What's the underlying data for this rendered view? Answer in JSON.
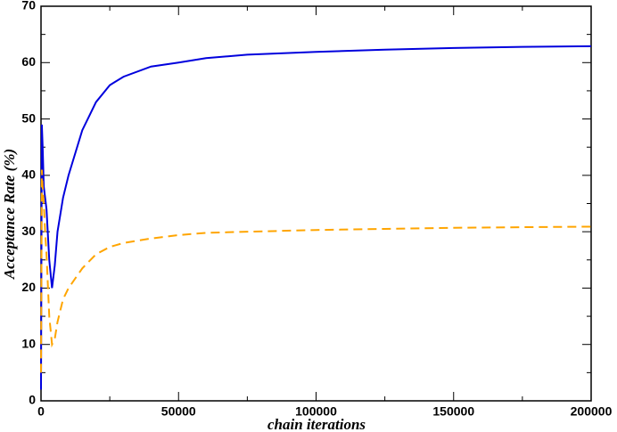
{
  "chart_data": {
    "type": "line",
    "x_label": "chain iterations",
    "y_label": "Acceptance Rate (%)",
    "x": [
      0,
      300,
      600,
      1000,
      1500,
      2000,
      3000,
      4000,
      5000,
      6000,
      8000,
      10000,
      15000,
      20000,
      25000,
      30000,
      40000,
      50000,
      60000,
      75000,
      100000,
      125000,
      150000,
      175000,
      200000
    ],
    "series": [
      {
        "color": "#0000dd",
        "dash": false,
        "values": [
          2,
          49,
          45,
          38,
          36,
          34,
          25,
          20,
          24,
          30,
          36,
          40,
          48,
          53,
          56,
          57.5,
          59.3,
          60,
          60.8,
          61.4,
          61.9,
          62.3,
          62.6,
          62.8,
          62.9
        ]
      },
      {
        "color": "#ffa500",
        "dash": true,
        "values": [
          5,
          41,
          38,
          35,
          30,
          26,
          15,
          10,
          11,
          14,
          18,
          20,
          23.5,
          26,
          27.3,
          28,
          28.8,
          29.4,
          29.8,
          30,
          30.3,
          30.5,
          30.7,
          30.8,
          30.9
        ]
      }
    ],
    "xlim": [
      0,
      200000
    ],
    "xticks": [
      0,
      50000,
      100000,
      150000,
      200000
    ],
    "xminorticks": [
      25000,
      75000,
      125000,
      175000
    ],
    "ylim": [
      0,
      70
    ],
    "yticks": [
      0,
      10,
      20,
      30,
      40,
      50,
      60,
      70
    ],
    "yminorticks": [
      5,
      15,
      25,
      35,
      45,
      55,
      65
    ]
  }
}
